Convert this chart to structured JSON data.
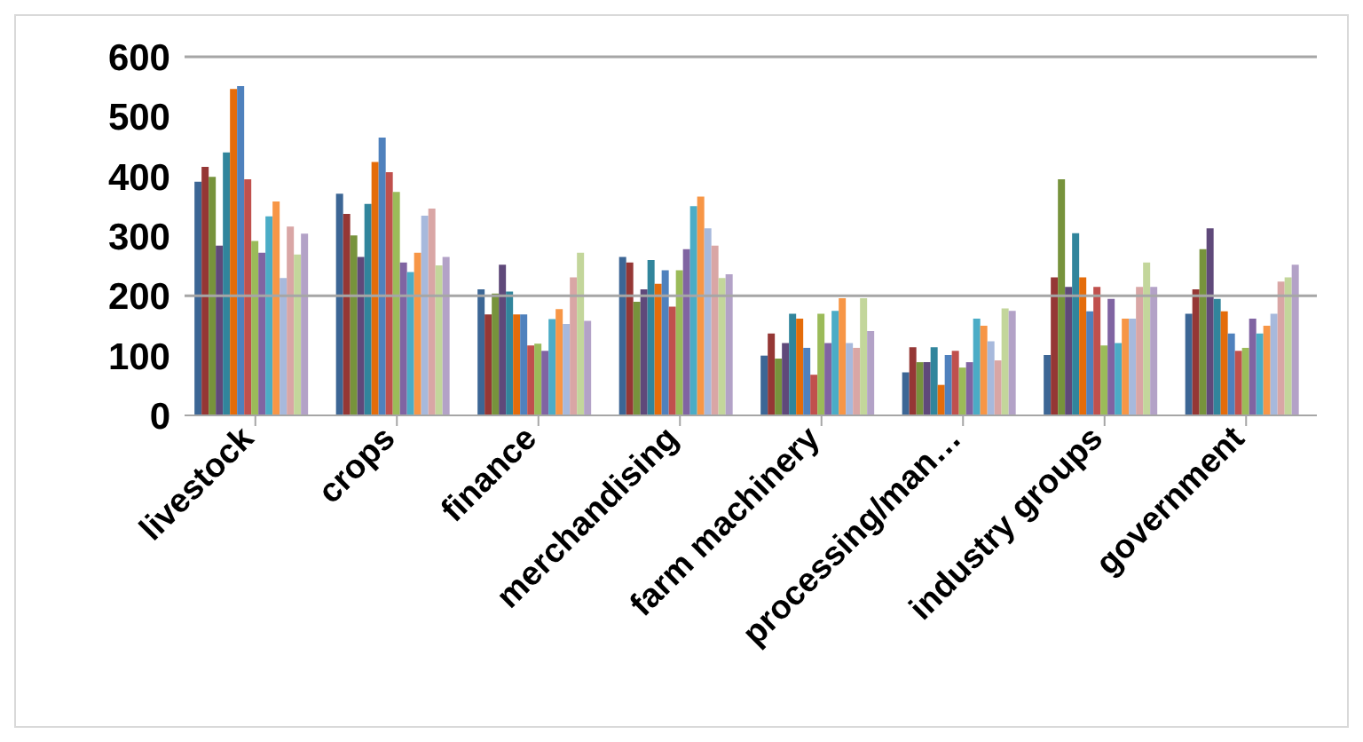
{
  "chart_data": {
    "type": "bar",
    "categories": [
      "livestock",
      "crops",
      "finance",
      "merchandising",
      "farm machinery",
      "processing/man…",
      "industry groups",
      "government"
    ],
    "ylim": [
      0,
      600
    ],
    "yticks": [
      0,
      100,
      200,
      300,
      400,
      500,
      600
    ],
    "ref_lines": [
      {
        "axis": "y",
        "value": 200,
        "color": "#a6a6a6"
      }
    ],
    "series": [
      {
        "color": "#3c6695",
        "values": [
          391,
          371,
          211,
          265,
          100,
          72,
          101,
          170
        ]
      },
      {
        "color": "#953735",
        "values": [
          416,
          337,
          169,
          256,
          137,
          114,
          231,
          211
        ]
      },
      {
        "color": "#77933c",
        "values": [
          399,
          301,
          204,
          190,
          95,
          89,
          395,
          278
        ]
      },
      {
        "color": "#5f497a",
        "values": [
          284,
          265,
          252,
          211,
          121,
          89,
          215,
          313
        ]
      },
      {
        "color": "#31859c",
        "values": [
          440,
          354,
          207,
          260,
          170,
          114,
          305,
          195
        ]
      },
      {
        "color": "#e46c0a",
        "values": [
          546,
          424,
          169,
          220,
          162,
          51,
          231,
          174
        ]
      },
      {
        "color": "#4f81bd",
        "values": [
          551,
          465,
          169,
          243,
          113,
          101,
          174,
          137
        ]
      },
      {
        "color": "#c0504d",
        "values": [
          395,
          407,
          117,
          182,
          68,
          108,
          215,
          108
        ]
      },
      {
        "color": "#9bbb59",
        "values": [
          292,
          374,
          120,
          243,
          170,
          80,
          117,
          113
        ]
      },
      {
        "color": "#8064a2",
        "values": [
          272,
          256,
          108,
          278,
          121,
          89,
          195,
          162
        ]
      },
      {
        "color": "#4bacc6",
        "values": [
          333,
          240,
          161,
          350,
          175,
          162,
          121,
          137
        ]
      },
      {
        "color": "#f79646",
        "values": [
          358,
          272,
          178,
          366,
          196,
          150,
          162,
          150
        ]
      },
      {
        "color": "#a7b9dc",
        "values": [
          230,
          334,
          153,
          313,
          121,
          124,
          162,
          170
        ]
      },
      {
        "color": "#d9a6a5",
        "values": [
          316,
          346,
          231,
          284,
          113,
          92,
          215,
          224
        ]
      },
      {
        "color": "#c3d69b",
        "values": [
          269,
          251,
          272,
          230,
          196,
          179,
          256,
          231
        ]
      },
      {
        "color": "#b3a2c7",
        "values": [
          304,
          265,
          158,
          236,
          141,
          175,
          215,
          252
        ]
      }
    ]
  }
}
